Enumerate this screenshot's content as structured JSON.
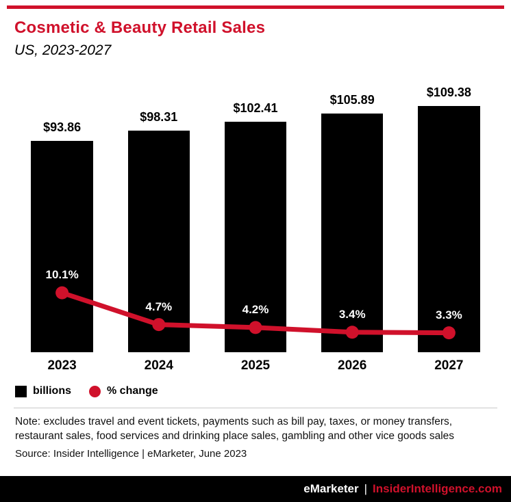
{
  "header": {
    "title": "Cosmetic & Beauty Retail Sales",
    "subtitle": "US, 2023-2027"
  },
  "chart_data": {
    "type": "bar",
    "title": "Cosmetic & Beauty Retail Sales",
    "subtitle": "US, 2023-2027",
    "categories": [
      "2023",
      "2024",
      "2025",
      "2026",
      "2027"
    ],
    "series": [
      {
        "name": "billions",
        "type": "bar",
        "values": [
          93.86,
          98.31,
          102.41,
          105.89,
          109.38
        ],
        "labels": [
          "$93.86",
          "$98.31",
          "$102.41",
          "$105.89",
          "$109.38"
        ],
        "color": "#000000"
      },
      {
        "name": "% change",
        "type": "line",
        "values": [
          10.1,
          4.7,
          4.2,
          3.4,
          3.3
        ],
        "labels": [
          "10.1%",
          "4.7%",
          "4.2%",
          "3.4%",
          "3.3%"
        ],
        "color": "#d0112b"
      }
    ],
    "xlabel": "",
    "ylabel": "",
    "ylim_bars": [
      0,
      115
    ],
    "ylim_line": [
      0,
      12
    ],
    "grid": false,
    "legend_position": "bottom-left"
  },
  "legend": {
    "items": [
      {
        "label": "billions",
        "swatch": "square",
        "color": "#000000"
      },
      {
        "label": "% change",
        "swatch": "circle",
        "color": "#d0112b"
      }
    ]
  },
  "footnotes": {
    "note": "Note: excludes travel and event tickets, payments such as bill pay, taxes, or money transfers, restaurant sales, food services and drinking place sales, gambling and other vice goods sales",
    "source": "Source: Insider Intelligence | eMarketer, June 2023"
  },
  "footer": {
    "brand": "eMarketer",
    "separator": "|",
    "site": "InsiderIntelligence.com"
  },
  "colors": {
    "accent_red": "#d0112b",
    "bar_black": "#000000",
    "divider_gray": "#c9c9c9"
  }
}
